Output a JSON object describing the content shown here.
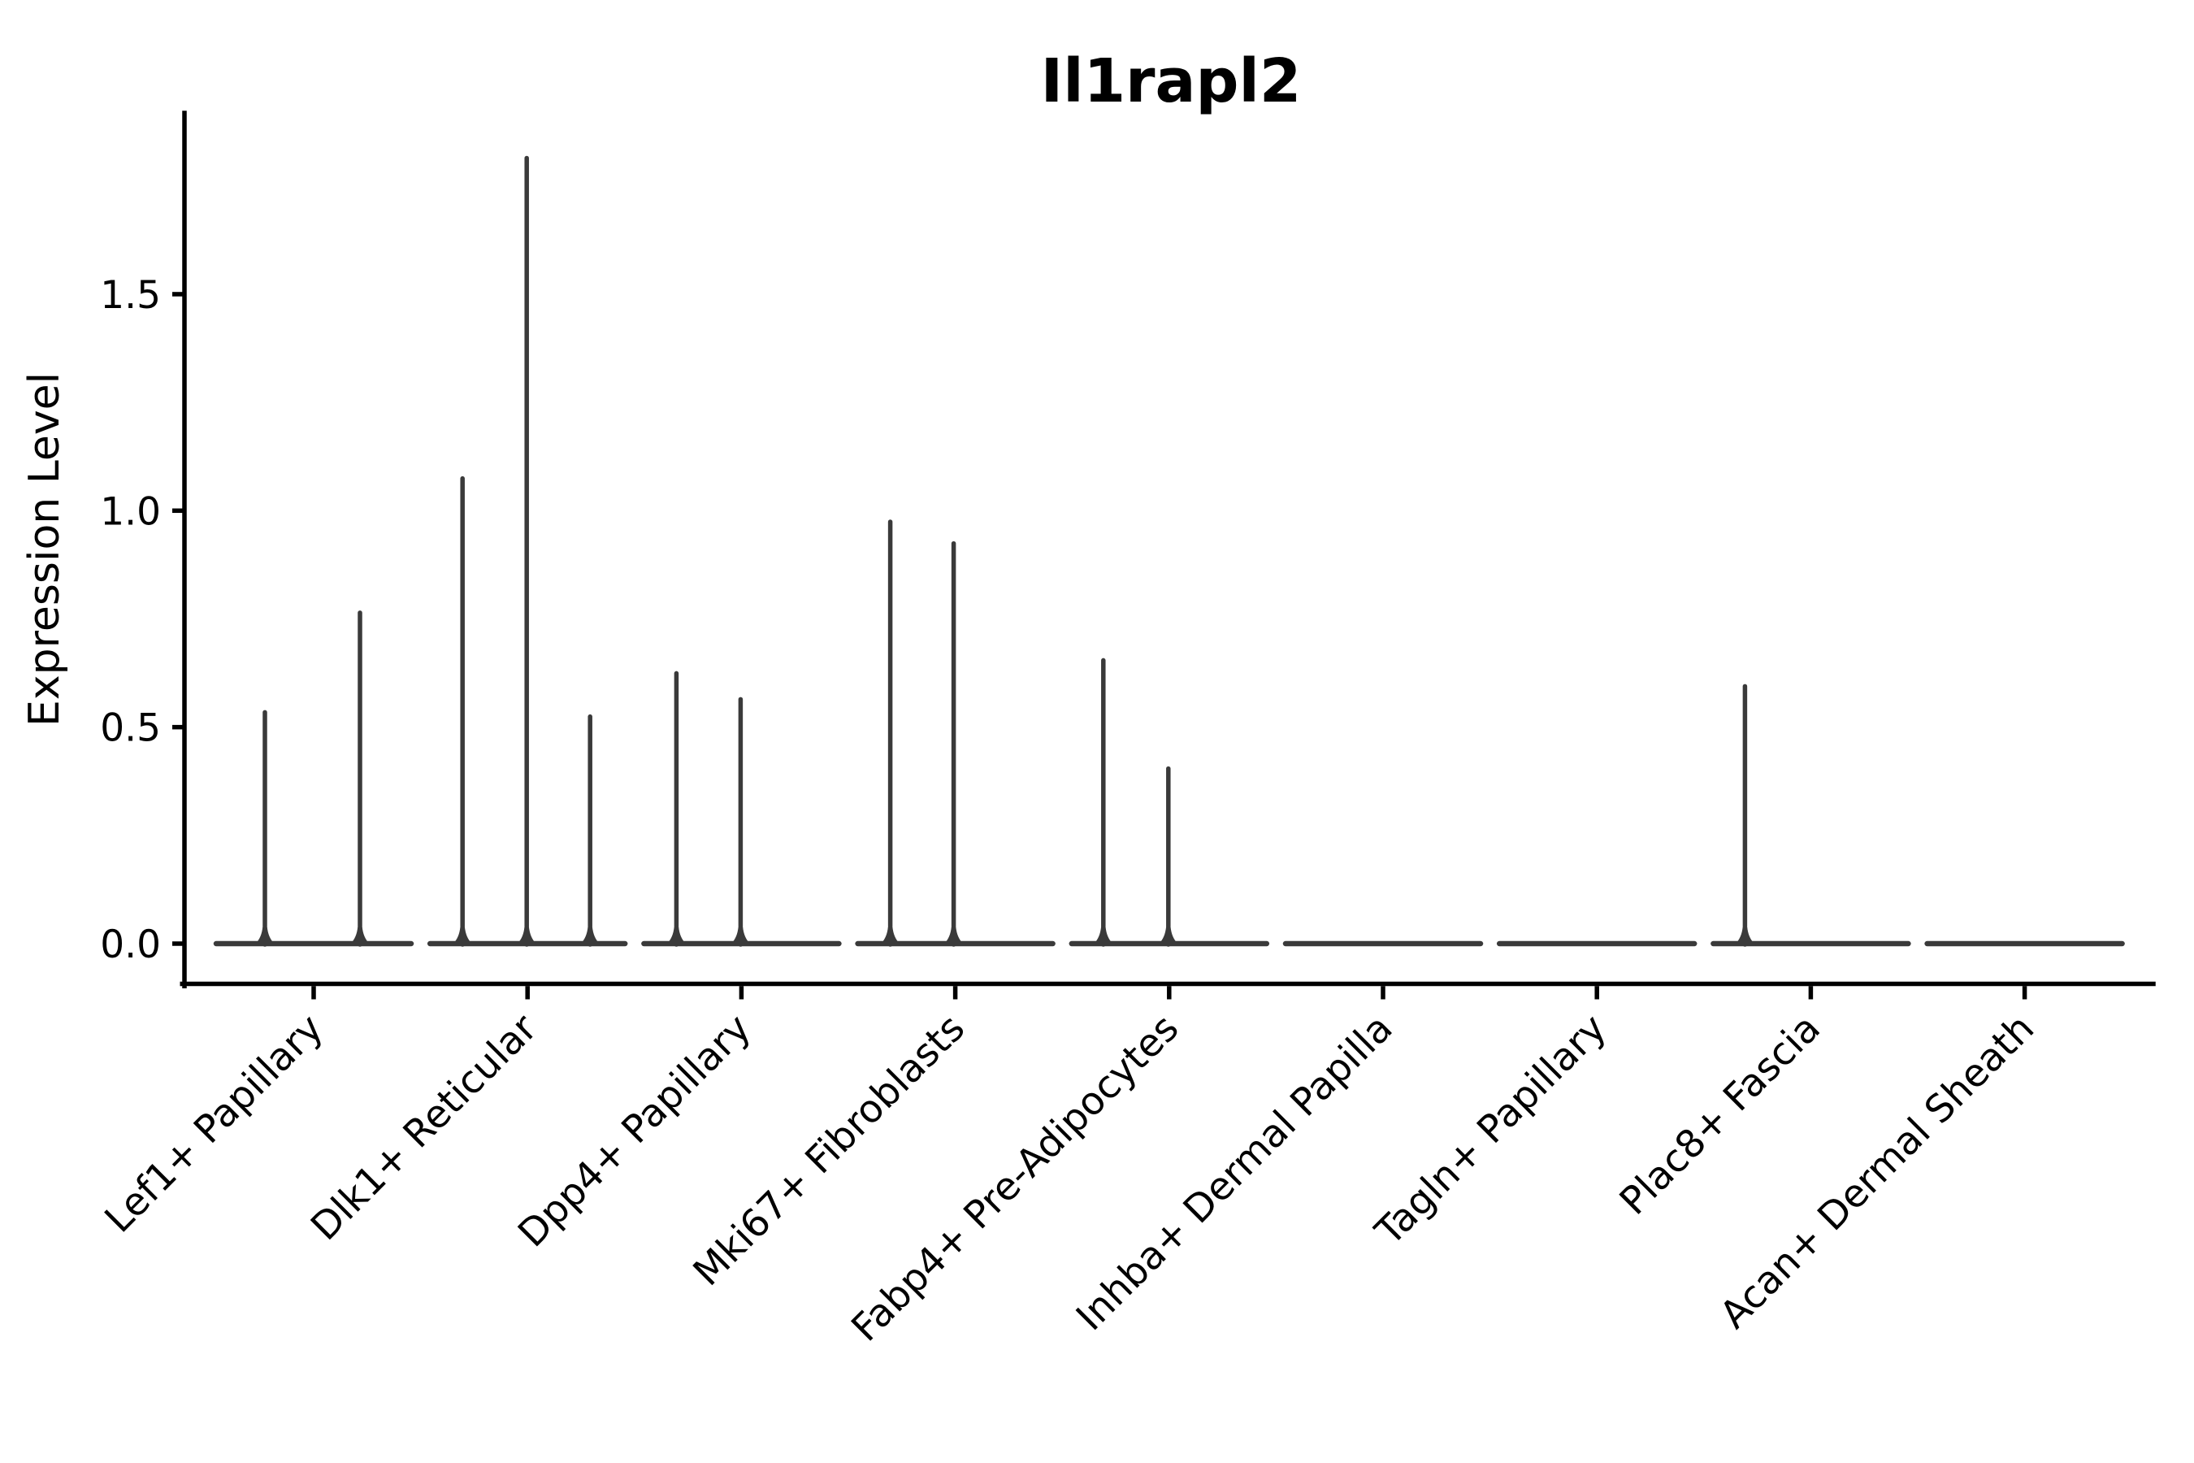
{
  "title": "Il1rapl2",
  "ylabel": "Expression Level",
  "colors": {
    "violin": "#3a3a3a",
    "axis": "#000000",
    "background": "#ffffff"
  },
  "chart_data": {
    "type": "violin",
    "title": "Il1rapl2",
    "xlabel": "",
    "ylabel": "Expression Level",
    "ylim": [
      -0.09,
      1.92
    ],
    "yticks": [
      0.0,
      0.5,
      1.0,
      1.5
    ],
    "grid": false,
    "legend": "none",
    "x_tick_rotation_degrees": 45,
    "categories": [
      "Lef1+ Papillary",
      "Dlk1+ Reticular",
      "Dpp4+ Papillary",
      "Mki67+ Fibroblasts",
      "Fabp4+ Pre-Adipocytes",
      "Inhba+ Dermal Papilla",
      "Tagln+ Papillary",
      "Plac8+ Fascia",
      "Acan+ Dermal Sheath"
    ],
    "series": [
      {
        "category": "Lef1+ Papillary",
        "spikes": [
          {
            "dx": -60,
            "value": 0.54
          },
          {
            "dx": 57,
            "value": 0.77
          }
        ]
      },
      {
        "category": "Dlk1+ Reticular",
        "spikes": [
          {
            "dx": -80,
            "value": 1.08
          },
          {
            "dx": -1,
            "value": 1.82
          },
          {
            "dx": 77,
            "value": 0.53
          }
        ]
      },
      {
        "category": "Dpp4+ Papillary",
        "spikes": [
          {
            "dx": -80,
            "value": 0.63
          },
          {
            "dx": -1,
            "value": 0.57
          }
        ]
      },
      {
        "category": "Mki67+ Fibroblasts",
        "spikes": [
          {
            "dx": -80,
            "value": 0.98
          },
          {
            "dx": -2,
            "value": 0.93
          }
        ]
      },
      {
        "category": "Fabp4+ Pre-Adipocytes",
        "spikes": [
          {
            "dx": -81,
            "value": 0.66
          },
          {
            "dx": -1,
            "value": 0.41
          }
        ]
      },
      {
        "category": "Inhba+ Dermal Papilla",
        "spikes": []
      },
      {
        "category": "Tagln+ Papillary",
        "spikes": []
      },
      {
        "category": "Plac8+ Fascia",
        "spikes": [
          {
            "dx": -81,
            "value": 0.6
          }
        ]
      },
      {
        "category": "Acan+ Dermal Sheath",
        "spikes": []
      }
    ]
  }
}
